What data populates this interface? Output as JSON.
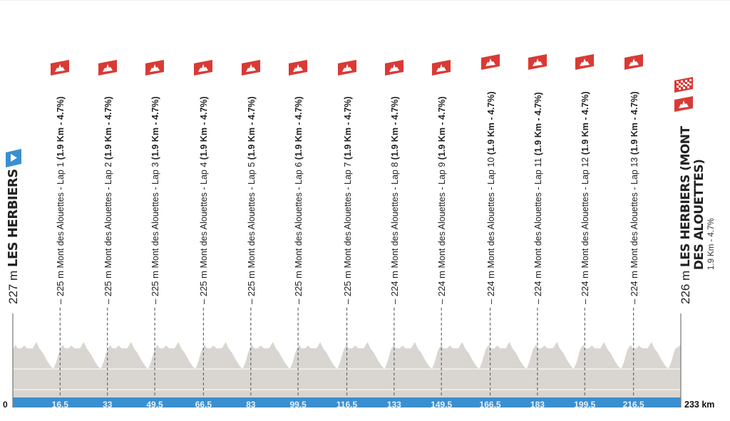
{
  "chart_data": {
    "type": "area",
    "title": "",
    "xlabel": "km",
    "ylabel": "m",
    "xlim": [
      0,
      233
    ],
    "x_unit": "km",
    "start": {
      "km": 0,
      "elevation_m": 227,
      "name": "LES HERBIERS",
      "icon": "start-flag-icon"
    },
    "finish": {
      "km": 233,
      "elevation_m": 226,
      "name_line1": "LES HERBIERS (MONT",
      "name_line2": "DES ALOUETTES)",
      "climb_info": "1.9 Km - 4.7%",
      "icons": [
        "finish-checkered-flag-icon",
        "climb-icon"
      ]
    },
    "axis": {
      "zero_label": "0",
      "end_label": "233 km"
    },
    "climbs": [
      {
        "km": 16.5,
        "km_label": "16,5",
        "elevation_m": 225,
        "name": "Mont des Alouettes - Lap 1",
        "details": "(1.9 Km - 4.7%)"
      },
      {
        "km": 33,
        "km_label": "33",
        "elevation_m": 225,
        "name": "Mont des Alouettes - Lap 2",
        "details": "(1.9 Km - 4.7%)"
      },
      {
        "km": 49.5,
        "km_label": "49,5",
        "elevation_m": 225,
        "name": "Mont des Alouettes - Lap 3",
        "details": "(1.9 Km - 4.7%)"
      },
      {
        "km": 66.5,
        "km_label": "66,5",
        "elevation_m": 225,
        "name": "Mont des Alouettes - Lap 4",
        "details": "(1.9 Km - 4.7%)"
      },
      {
        "km": 83,
        "km_label": "83",
        "elevation_m": 225,
        "name": "Mont des Alouettes - Lap 5",
        "details": "(1.9 Km - 4.7%)"
      },
      {
        "km": 99.5,
        "km_label": "99,5",
        "elevation_m": 225,
        "name": "Mont des Alouettes - Lap 6",
        "details": "(1.9 Km - 4.7%)"
      },
      {
        "km": 116.5,
        "km_label": "116,5",
        "elevation_m": 225,
        "name": "Mont des Alouettes - Lap 7",
        "details": "(1.9 Km - 4.7%)"
      },
      {
        "km": 133,
        "km_label": "133",
        "elevation_m": 224,
        "name": "Mont des Alouettes - Lap 8",
        "details": "(1.9 Km - 4.7%)"
      },
      {
        "km": 149.5,
        "km_label": "149,5",
        "elevation_m": 224,
        "name": "Mont des Alouettes - Lap 9",
        "details": "(1.9 Km - 4.7%)"
      },
      {
        "km": 166.5,
        "km_label": "166,5",
        "elevation_m": 224,
        "name": "Mont des Alouettes - Lap 10",
        "details": "(1.9 Km - 4.7%)"
      },
      {
        "km": 183,
        "km_label": "183",
        "elevation_m": 224,
        "name": "Mont des Alouettes - Lap 11",
        "details": "(1.9 Km - 4.7%)"
      },
      {
        "km": 199.5,
        "km_label": "199,5",
        "elevation_m": 224,
        "name": "Mont des Alouettes - Lap 12",
        "details": "(1.9 Km - 4.7%)"
      },
      {
        "km": 216.5,
        "km_label": "216,5",
        "elevation_m": 224,
        "name": "Mont des Alouettes - Lap 13",
        "details": "(1.9 Km - 4.7%)"
      }
    ],
    "colors": {
      "profile_fill": "#d9d5d1",
      "axis_bar": "#3a8fd0",
      "climb_icon": "#d93a35",
      "start_icon": "#3a8fd0",
      "gridline": "#f6f1ea",
      "axis_line": "#666666",
      "dashed_marker": "#6a6a6a"
    },
    "grid": true,
    "legend": null
  }
}
